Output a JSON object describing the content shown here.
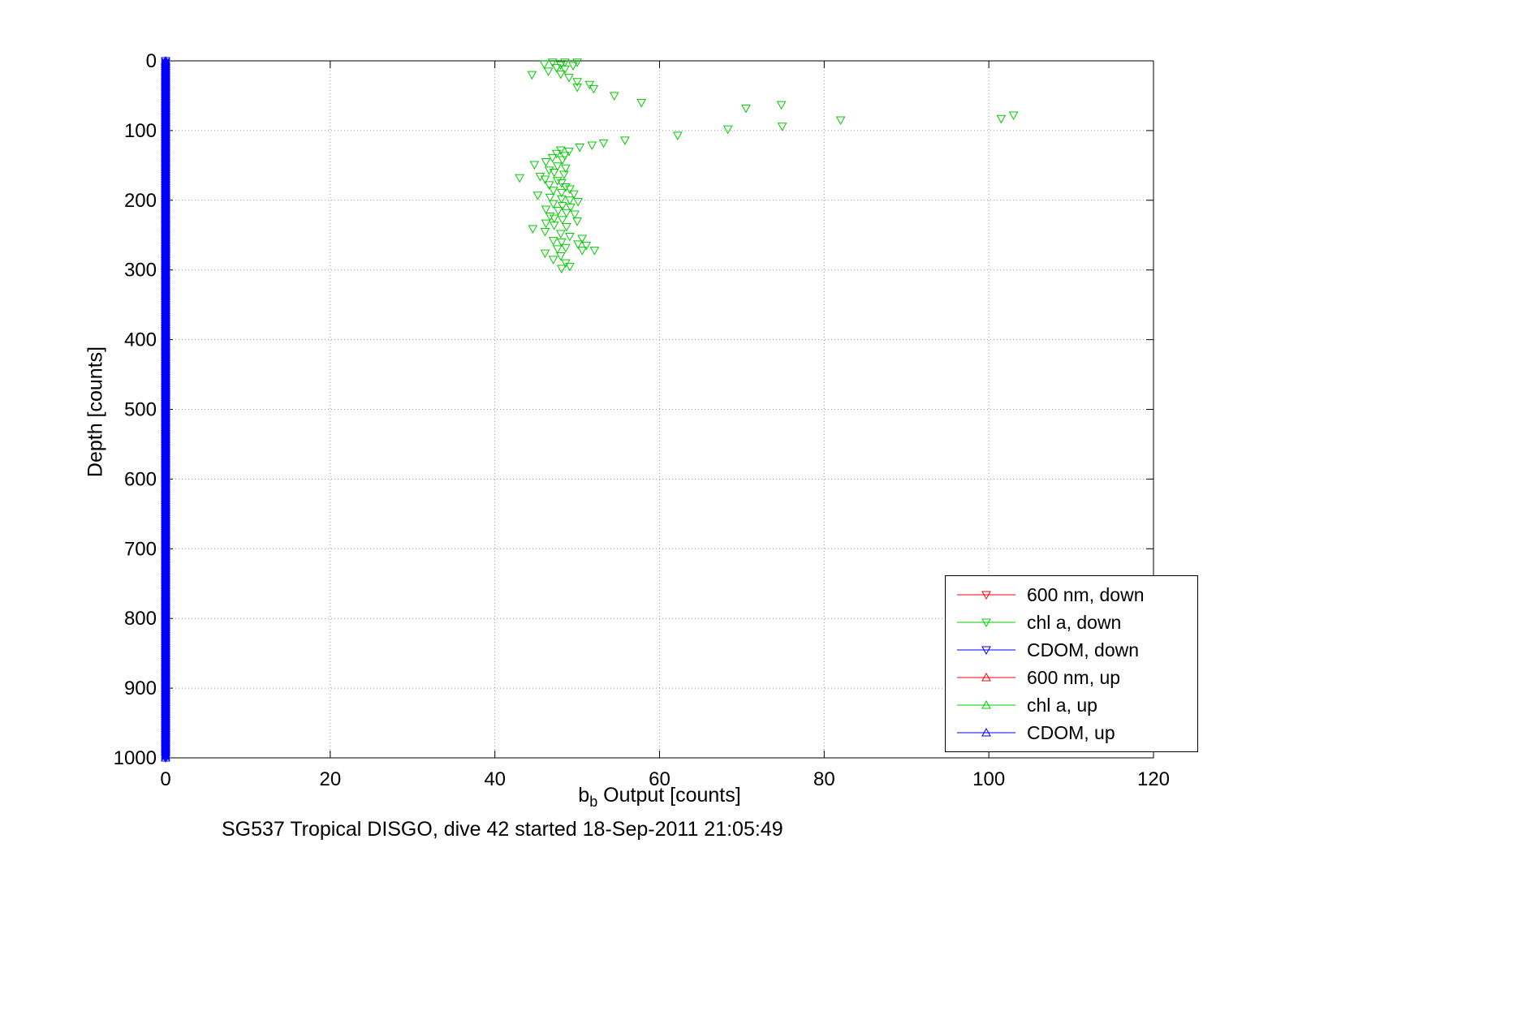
{
  "figure": {
    "caption": "SG537 Tropical DISGO, dive 42 started 18-Sep-2011 21:05:49",
    "xlabel": {
      "base": "b",
      "sub": "b",
      "rest": " Output [counts]"
    },
    "ylabel": "Depth [counts]"
  },
  "chart_data": {
    "type": "scatter",
    "title": "SG537 Tropical DISGO, dive 42 started 18-Sep-2011 21:05:49",
    "xlabel": "b_b Output [counts]",
    "ylabel": "Depth [counts]",
    "xlim": [
      0,
      120
    ],
    "ylim": [
      0,
      1000
    ],
    "y_inverted": true,
    "xticks": [
      0,
      20,
      40,
      60,
      80,
      100,
      120
    ],
    "yticks": [
      0,
      100,
      200,
      300,
      400,
      500,
      600,
      700,
      800,
      900,
      1000
    ],
    "grid": "dotted",
    "grid_color": "#9a9a9a",
    "legend_position": "bottom-right",
    "series": [
      {
        "name": "600 nm, down",
        "color": "#ff0000",
        "marker": "triangle-down",
        "points": []
      },
      {
        "name": "chl a, down",
        "color": "#00cc00",
        "marker": "triangle-down",
        "points": [
          [
            47,
            2
          ],
          [
            48.5,
            2
          ],
          [
            50,
            2
          ],
          [
            46,
            5
          ],
          [
            48,
            6
          ],
          [
            49.5,
            7
          ],
          [
            47.5,
            10
          ],
          [
            48.5,
            12
          ],
          [
            46.5,
            15
          ],
          [
            44.5,
            20
          ],
          [
            48,
            19
          ],
          [
            49,
            24
          ],
          [
            50,
            30
          ],
          [
            51.5,
            34
          ],
          [
            50,
            38
          ],
          [
            52,
            40
          ],
          [
            54.5,
            50
          ],
          [
            57.8,
            60
          ],
          [
            70.5,
            68
          ],
          [
            74.8,
            63
          ],
          [
            82,
            85
          ],
          [
            101.5,
            83
          ],
          [
            103,
            78
          ],
          [
            74.9,
            94
          ],
          [
            68.3,
            98
          ],
          [
            62.2,
            107
          ],
          [
            55.8,
            114
          ],
          [
            53.2,
            118
          ],
          [
            51.8,
            121
          ],
          [
            50.3,
            124
          ],
          [
            48,
            128
          ],
          [
            49,
            130
          ],
          [
            47.5,
            133
          ],
          [
            48.5,
            136
          ],
          [
            47,
            139
          ],
          [
            48.2,
            142
          ],
          [
            46.2,
            145
          ],
          [
            44.8,
            149
          ],
          [
            47.6,
            151
          ],
          [
            48.6,
            154
          ],
          [
            46.6,
            157
          ],
          [
            47.2,
            160
          ],
          [
            48.4,
            163
          ],
          [
            45.5,
            166
          ],
          [
            43,
            168
          ],
          [
            46.1,
            170
          ],
          [
            47.6,
            172
          ],
          [
            48.1,
            175
          ],
          [
            46.6,
            178
          ],
          [
            48.6,
            181
          ],
          [
            49.1,
            184
          ],
          [
            47.1,
            186
          ],
          [
            48.1,
            189
          ],
          [
            49.6,
            191
          ],
          [
            45.2,
            193
          ],
          [
            46.7,
            196
          ],
          [
            48.1,
            198
          ],
          [
            49.1,
            200
          ],
          [
            50.1,
            202
          ],
          [
            47.1,
            205
          ],
          [
            48.2,
            208
          ],
          [
            49.2,
            210
          ],
          [
            46.2,
            213
          ],
          [
            47.7,
            215
          ],
          [
            48.7,
            218
          ],
          [
            49.7,
            220
          ],
          [
            46.7,
            223
          ],
          [
            47.2,
            226
          ],
          [
            48.2,
            228
          ],
          [
            50,
            230
          ],
          [
            46.2,
            233
          ],
          [
            47.2,
            236
          ],
          [
            48.7,
            238
          ],
          [
            44.6,
            241
          ],
          [
            46.1,
            245
          ],
          [
            48,
            248
          ],
          [
            49.1,
            252
          ],
          [
            50.6,
            255
          ],
          [
            47.1,
            258
          ],
          [
            48.1,
            260
          ],
          [
            50.1,
            263
          ],
          [
            51.1,
            265
          ],
          [
            48.6,
            268
          ],
          [
            47.6,
            270
          ],
          [
            50.6,
            272
          ],
          [
            52.1,
            272
          ],
          [
            46.1,
            276
          ],
          [
            48,
            280
          ],
          [
            47.1,
            285
          ],
          [
            48.6,
            290
          ],
          [
            49.1,
            295
          ],
          [
            48.1,
            298
          ]
        ]
      },
      {
        "name": "CDOM, down",
        "color": "#0000ff",
        "marker": "triangle-down",
        "band": {
          "x": 0,
          "depth_min": 0,
          "depth_max": 1000,
          "step": 2.5
        }
      },
      {
        "name": "600 nm, up",
        "color": "#ff0000",
        "marker": "triangle-up",
        "points": []
      },
      {
        "name": "chl a, up",
        "color": "#00cc00",
        "marker": "triangle-up",
        "points": []
      },
      {
        "name": "CDOM, up",
        "color": "#0000ff",
        "marker": "triangle-up",
        "band": {
          "x": 0,
          "depth_min": 0,
          "depth_max": 1000,
          "step": 2.5
        }
      }
    ]
  }
}
